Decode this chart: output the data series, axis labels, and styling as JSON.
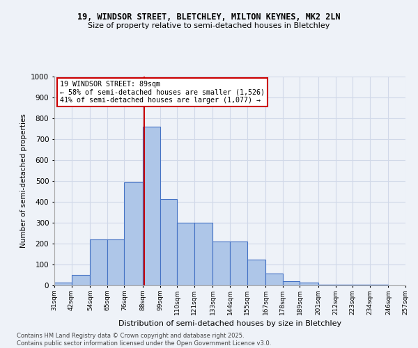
{
  "title1": "19, WINDSOR STREET, BLETCHLEY, MILTON KEYNES, MK2 2LN",
  "title2": "Size of property relative to semi-detached houses in Bletchley",
  "xlabel": "Distribution of semi-detached houses by size in Bletchley",
  "ylabel": "Number of semi-detached properties",
  "bins": [
    31,
    42,
    54,
    65,
    76,
    88,
    99,
    110,
    121,
    133,
    144,
    155,
    167,
    178,
    189,
    201,
    212,
    223,
    234,
    246,
    257
  ],
  "bin_labels": [
    "31sqm",
    "42sqm",
    "54sqm",
    "65sqm",
    "76sqm",
    "88sqm",
    "99sqm",
    "110sqm",
    "121sqm",
    "133sqm",
    "144sqm",
    "155sqm",
    "167sqm",
    "178sqm",
    "189sqm",
    "201sqm",
    "212sqm",
    "223sqm",
    "234sqm",
    "246sqm",
    "257sqm"
  ],
  "counts": [
    15,
    50,
    220,
    220,
    495,
    760,
    415,
    300,
    300,
    210,
    210,
    125,
    57,
    20,
    12,
    5,
    5,
    2,
    2,
    1,
    0
  ],
  "bar_color": "#aec6e8",
  "bar_edge_color": "#4472c4",
  "vline_x": 89,
  "vline_color": "#cc0000",
  "annotation_title": "19 WINDSOR STREET: 89sqm",
  "annotation_line1": "← 58% of semi-detached houses are smaller (1,526)",
  "annotation_line2": "41% of semi-detached houses are larger (1,077) →",
  "annotation_box_color": "#cc0000",
  "annotation_bg": "#ffffff",
  "ylim": [
    0,
    1000
  ],
  "yticks": [
    0,
    100,
    200,
    300,
    400,
    500,
    600,
    700,
    800,
    900,
    1000
  ],
  "grid_color": "#d0d8e8",
  "footer1": "Contains HM Land Registry data © Crown copyright and database right 2025.",
  "footer2": "Contains public sector information licensed under the Open Government Licence v3.0.",
  "bg_color": "#eef2f8",
  "fig_width": 6.0,
  "fig_height": 5.0,
  "dpi": 100
}
